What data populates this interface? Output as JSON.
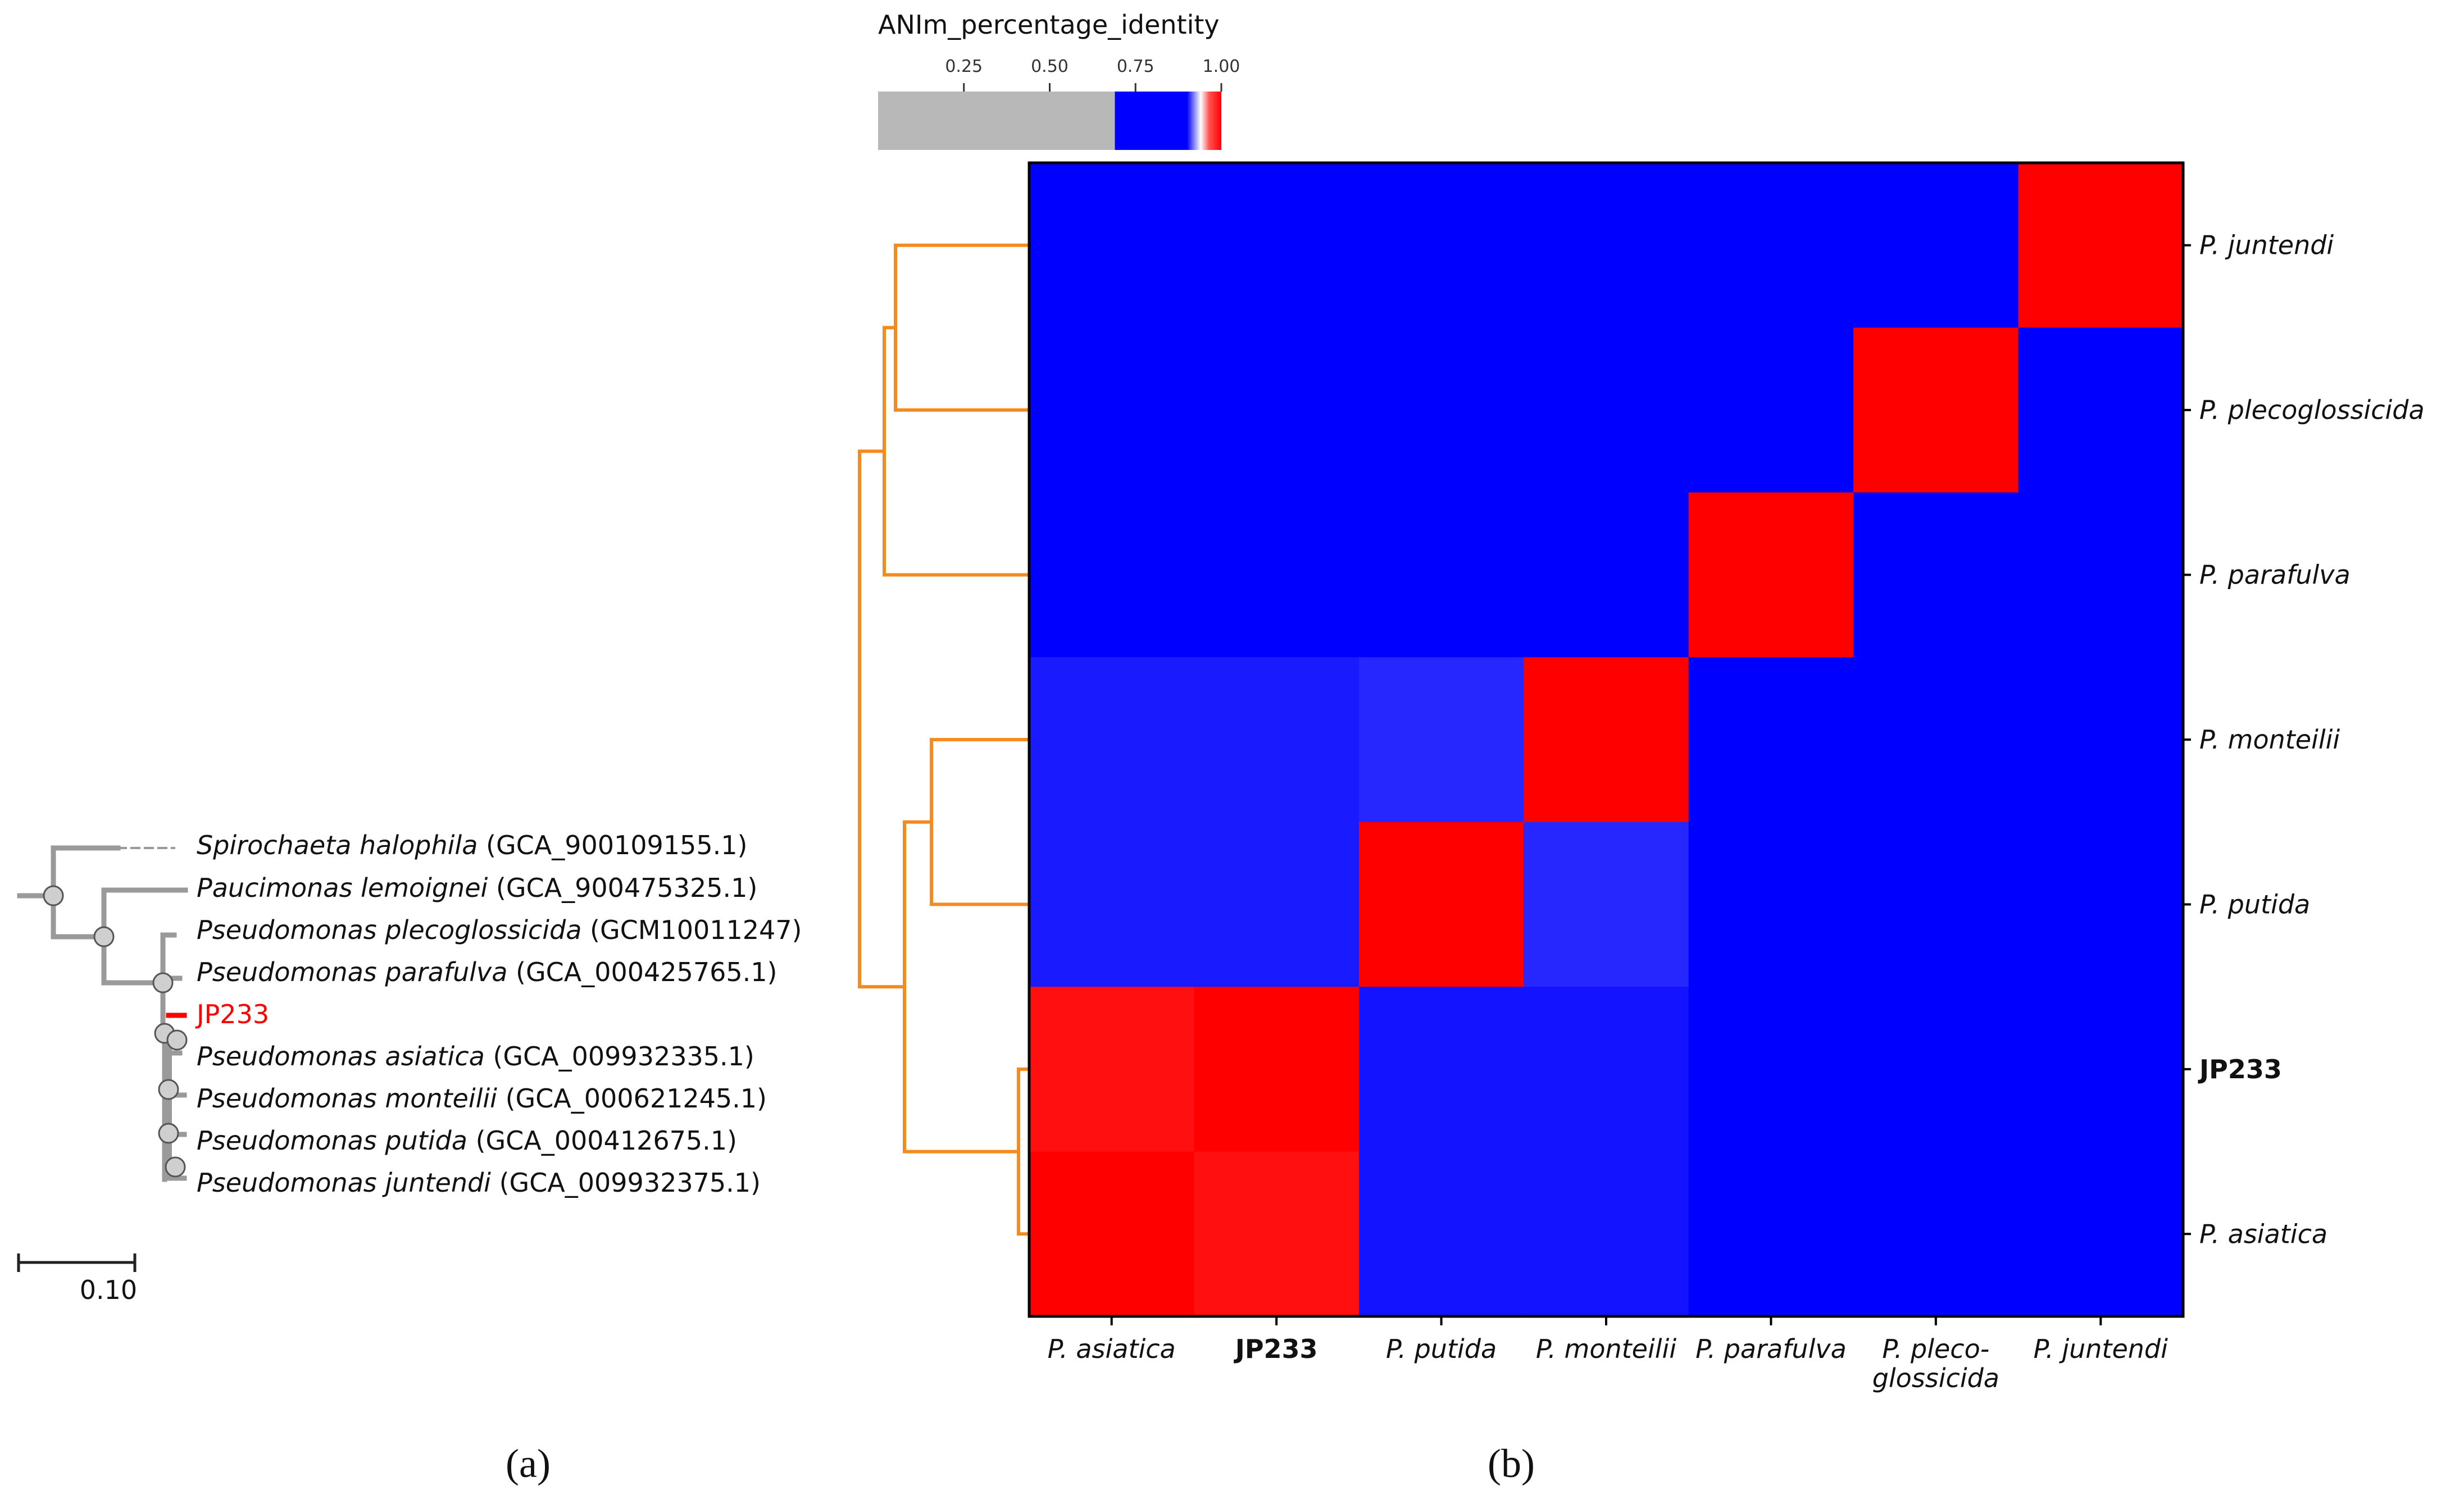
{
  "panels": {
    "a": "(a)",
    "b": "(b)"
  },
  "tree": {
    "scale_bar_label": "0.10",
    "scale_bar_value": 0.1,
    "leaves": [
      {
        "genus": "Spirochaeta halophila",
        "acc": "(GCA_900109155.1)"
      },
      {
        "genus": "Paucimonas lemoignei",
        "acc": "(GCA_900475325.1)"
      },
      {
        "genus": "Pseudomonas plecoglossicida",
        "acc": "(GCM10011247)"
      },
      {
        "genus": "Pseudomonas parafulva",
        "acc": "(GCA_000425765.1)"
      },
      {
        "genus": "JP233",
        "acc": "",
        "highlight": true
      },
      {
        "genus": "Pseudomonas asiatica",
        "acc": "(GCA_009932335.1)"
      },
      {
        "genus": "Pseudomonas monteilii",
        "acc": "(GCA_000621245.1)"
      },
      {
        "genus": "Pseudomonas putida",
        "acc": "(GCA_000412675.1)"
      },
      {
        "genus": "Pseudomonas juntendi",
        "acc": "(GCA_009932375.1)"
      }
    ]
  },
  "colorbar": {
    "title": "ANIm_percentage_identity",
    "ticks": [
      0.25,
      0.5,
      0.75,
      1.0
    ],
    "tick_labels": [
      "0.25",
      "0.50",
      "0.75",
      "1.00"
    ],
    "range": [
      0,
      1.0
    ]
  },
  "colors": {
    "gray": "#b8b8b8",
    "blue": "#0000ff",
    "red": "#ff0000",
    "dendrogram": "#f58a1f",
    "tree": "#9a9a9a",
    "highlight": "#ff0000"
  },
  "chart_data": {
    "type": "heatmap",
    "title": "ANIm_percentage_identity",
    "row_labels": [
      "P. juntendi",
      "P. plecoglossicida",
      "P. parafulva",
      "P. monteilii",
      "P. putida",
      "JP233",
      "P. asiatica"
    ],
    "col_labels": [
      "P. asiatica",
      "JP233",
      "P. putida",
      "P. monteilii",
      "P. parafulva",
      "P. pleco-\nglossicida",
      "P. juntendi"
    ],
    "bold_label": "JP233",
    "values": [
      [
        0.86,
        0.86,
        0.86,
        0.86,
        0.86,
        0.86,
        1.0
      ],
      [
        0.86,
        0.86,
        0.86,
        0.86,
        0.86,
        1.0,
        0.86
      ],
      [
        0.86,
        0.86,
        0.86,
        0.86,
        1.0,
        0.86,
        0.86
      ],
      [
        0.88,
        0.88,
        0.89,
        1.0,
        0.86,
        0.86,
        0.86
      ],
      [
        0.88,
        0.88,
        1.0,
        0.89,
        0.86,
        0.86,
        0.86
      ],
      [
        0.985,
        1.0,
        0.875,
        0.875,
        0.86,
        0.86,
        0.86
      ],
      [
        1.0,
        0.985,
        0.875,
        0.875,
        0.86,
        0.86,
        0.86
      ]
    ]
  }
}
